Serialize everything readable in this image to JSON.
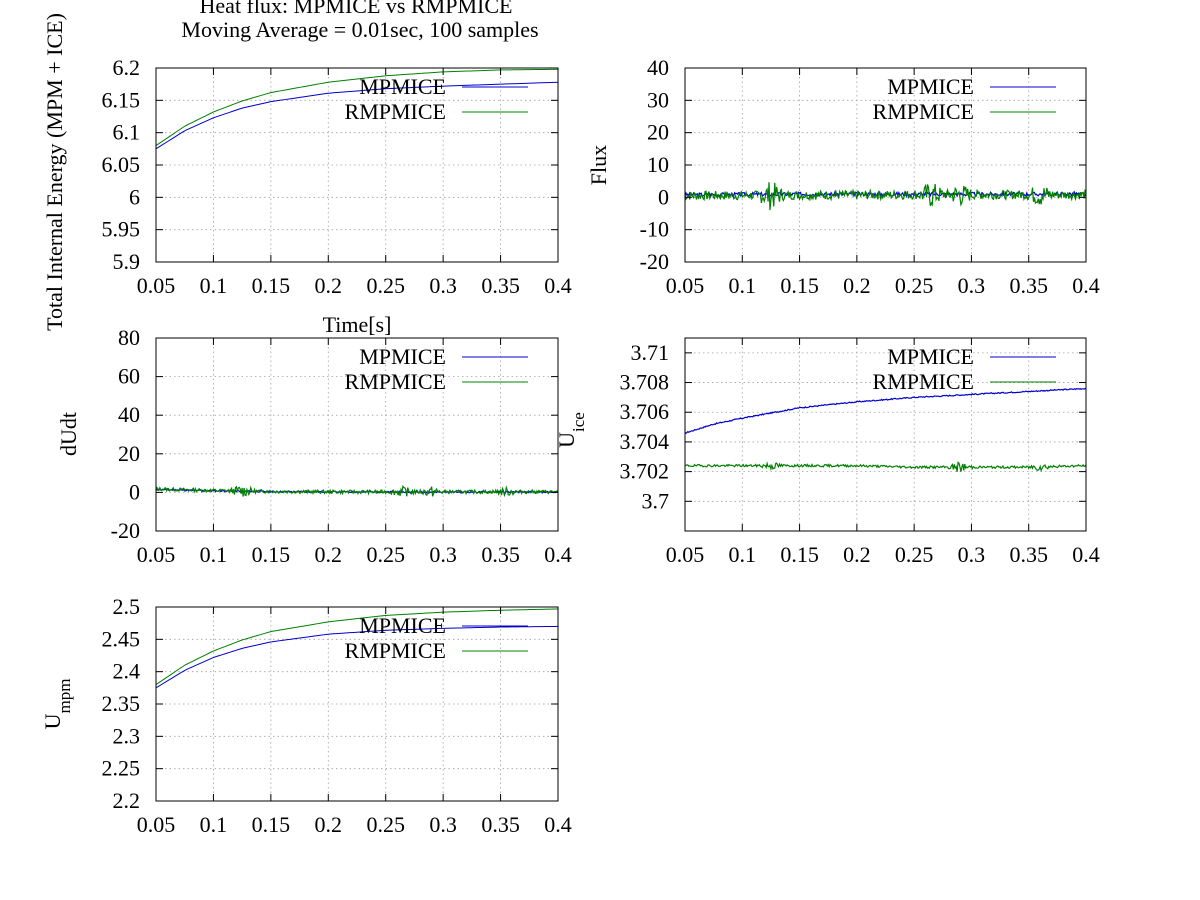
{
  "figure": {
    "title_lines": [
      "Heat flux: MPMICE vs RMPMICE",
      "Moving Average = 0.01sec, 100 samples"
    ]
  },
  "colors": {
    "MPMICE": "#0000cc",
    "RMPMICE": "#008000"
  },
  "chart_data": [
    {
      "id": "energy",
      "type": "line",
      "title": "",
      "xlabel": "Time[s]",
      "ylabel": "Total Internal Energy (MPM + ICE)",
      "ylabel_sub": "",
      "xlim": [
        0.05,
        0.4
      ],
      "ylim": [
        5.9,
        6.2
      ],
      "xticks": [
        0.05,
        0.1,
        0.15,
        0.2,
        0.25,
        0.3,
        0.35,
        0.4
      ],
      "yticks": [
        5.9,
        5.95,
        6,
        6.05,
        6.1,
        6.15,
        6.2
      ],
      "grid": true,
      "legend": "top-right",
      "x": [
        0.05,
        0.075,
        0.1,
        0.125,
        0.15,
        0.2,
        0.25,
        0.3,
        0.35,
        0.4
      ],
      "series": [
        {
          "name": "MPMICE",
          "values": [
            6.075,
            6.103,
            6.123,
            6.138,
            6.148,
            6.161,
            6.168,
            6.172,
            6.175,
            6.178
          ]
        },
        {
          "name": "RMPMICE",
          "values": [
            6.08,
            6.11,
            6.132,
            6.149,
            6.162,
            6.178,
            6.188,
            6.194,
            6.197,
            6.198
          ]
        }
      ]
    },
    {
      "id": "flux",
      "type": "line",
      "title": "",
      "xlabel": "",
      "ylabel": "Flux",
      "ylabel_sub": "",
      "xlim": [
        0.05,
        0.4
      ],
      "ylim": [
        -20,
        40
      ],
      "xticks": [
        0.05,
        0.1,
        0.15,
        0.2,
        0.25,
        0.3,
        0.35,
        0.4
      ],
      "yticks": [
        -20,
        -10,
        0,
        10,
        20,
        30,
        40
      ],
      "grid": true,
      "legend": "top-right",
      "x": [
        0.05,
        0.1,
        0.15,
        0.2,
        0.25,
        0.3,
        0.35,
        0.4
      ],
      "series": [
        {
          "name": "MPMICE",
          "values": [
            0.8,
            0.9,
            1.0,
            1.0,
            1.0,
            1.0,
            1.0,
            1.0
          ],
          "noise": 0.6,
          "seed": 3
        },
        {
          "name": "RMPMICE",
          "values": [
            0.5,
            0.6,
            0.7,
            0.7,
            0.8,
            0.8,
            0.8,
            0.8
          ],
          "noise": 1.4,
          "seed": 7,
          "bursts": [
            [
              0.125,
              3.5
            ],
            [
              0.265,
              3
            ],
            [
              0.29,
              2.5
            ],
            [
              0.36,
              2.5
            ]
          ]
        }
      ]
    },
    {
      "id": "dudt",
      "type": "line",
      "title": "",
      "xlabel": "",
      "ylabel": "dUdt",
      "ylabel_sub": "",
      "xlim": [
        0.05,
        0.4
      ],
      "ylim": [
        -20,
        80
      ],
      "xticks": [
        0.05,
        0.1,
        0.15,
        0.2,
        0.25,
        0.3,
        0.35,
        0.4
      ],
      "yticks": [
        -20,
        0,
        20,
        40,
        60,
        80
      ],
      "grid": true,
      "legend": "top-right",
      "x": [
        0.05,
        0.1,
        0.15,
        0.2,
        0.25,
        0.3,
        0.35,
        0.4
      ],
      "series": [
        {
          "name": "MPMICE",
          "values": [
            1.5,
            0.8,
            0.4,
            0.3,
            0.2,
            0.2,
            0.2,
            0.2
          ],
          "noise": 0.4,
          "seed": 11
        },
        {
          "name": "RMPMICE",
          "values": [
            1.8,
            1.0,
            0.5,
            0.3,
            0.3,
            0.3,
            0.3,
            0.3
          ],
          "noise": 0.9,
          "seed": 13,
          "bursts": [
            [
              0.125,
              2.5
            ],
            [
              0.265,
              2
            ],
            [
              0.29,
              2
            ],
            [
              0.355,
              1.5
            ]
          ]
        }
      ]
    },
    {
      "id": "uice",
      "type": "line",
      "title": "",
      "xlabel": "",
      "ylabel": "U",
      "ylabel_sub": "ice",
      "xlim": [
        0.05,
        0.4
      ],
      "ylim": [
        3.698,
        3.711
      ],
      "xticks": [
        0.05,
        0.1,
        0.15,
        0.2,
        0.25,
        0.3,
        0.35,
        0.4
      ],
      "yticks": [
        3.7,
        3.702,
        3.704,
        3.706,
        3.708,
        3.71
      ],
      "ytick_labels": [
        "3.7",
        "3.702",
        "3.704",
        "3.706",
        "3.708",
        "3.71"
      ],
      "grid": true,
      "legend": "top-right",
      "x": [
        0.05,
        0.075,
        0.1,
        0.15,
        0.2,
        0.25,
        0.3,
        0.35,
        0.4
      ],
      "series": [
        {
          "name": "MPMICE",
          "values": [
            3.7046,
            3.7052,
            3.7056,
            3.7063,
            3.7067,
            3.707,
            3.7072,
            3.7074,
            3.7076
          ],
          "noise": 4e-05,
          "seed": 17
        },
        {
          "name": "RMPMICE",
          "values": [
            3.7024,
            3.7024,
            3.7024,
            3.7024,
            3.7024,
            3.7023,
            3.7023,
            3.7023,
            3.7024
          ],
          "noise": 8e-05,
          "seed": 19,
          "bursts": [
            [
              0.125,
              0.0002
            ],
            [
              0.29,
              0.0003
            ],
            [
              0.36,
              0.0002
            ]
          ]
        }
      ]
    },
    {
      "id": "umpm",
      "type": "line",
      "title": "",
      "xlabel": "",
      "ylabel": "U",
      "ylabel_sub": "mpm",
      "xlim": [
        0.05,
        0.4
      ],
      "ylim": [
        2.2,
        2.5
      ],
      "xticks": [
        0.05,
        0.1,
        0.15,
        0.2,
        0.25,
        0.3,
        0.35,
        0.4
      ],
      "yticks": [
        2.2,
        2.25,
        2.3,
        2.35,
        2.4,
        2.45,
        2.5
      ],
      "grid": true,
      "legend": "top-right",
      "x": [
        0.05,
        0.075,
        0.1,
        0.125,
        0.15,
        0.2,
        0.25,
        0.3,
        0.35,
        0.4
      ],
      "series": [
        {
          "name": "MPMICE",
          "values": [
            2.375,
            2.402,
            2.422,
            2.436,
            2.446,
            2.458,
            2.464,
            2.467,
            2.469,
            2.47
          ]
        },
        {
          "name": "RMPMICE",
          "values": [
            2.38,
            2.41,
            2.432,
            2.449,
            2.462,
            2.477,
            2.487,
            2.492,
            2.495,
            2.497
          ]
        }
      ]
    }
  ]
}
